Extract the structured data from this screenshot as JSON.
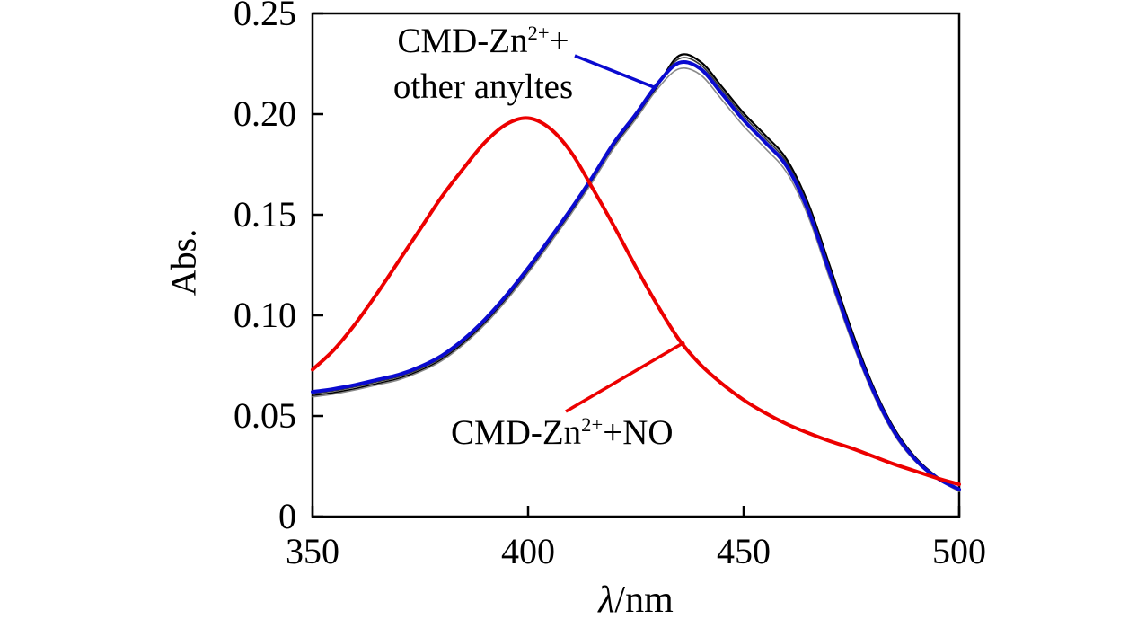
{
  "chart_data": {
    "type": "line",
    "title": "",
    "ylabel": "Abs.",
    "xlabel_italic": "λ",
    "xlabel_rest": "/nm",
    "xlim": [
      350,
      500
    ],
    "ylim": [
      0,
      0.25
    ],
    "grid": false,
    "legend_position": "none",
    "xticks": [
      {
        "value": 350,
        "label": "350"
      },
      {
        "value": 400,
        "label": "400"
      },
      {
        "value": 450,
        "label": "450"
      },
      {
        "value": 500,
        "label": "500"
      }
    ],
    "yticks": [
      {
        "value": 0,
        "label": "0"
      },
      {
        "value": 0.05,
        "label": "0.05"
      },
      {
        "value": 0.1,
        "label": "0.10"
      },
      {
        "value": 0.15,
        "label": "0.15"
      },
      {
        "value": 0.2,
        "label": "0.20"
      },
      {
        "value": 0.25,
        "label": "0.25"
      }
    ],
    "x": [
      350,
      355,
      360,
      365,
      370,
      375,
      380,
      385,
      390,
      395,
      400,
      405,
      410,
      415,
      420,
      425,
      430,
      435,
      440,
      445,
      450,
      455,
      460,
      465,
      470,
      475,
      480,
      485,
      490,
      495,
      500
    ],
    "series": [
      {
        "id": "other-analyte-black",
        "name": "CMD-Zn2+ + other analyte (black trace)",
        "color": "#000000",
        "width": 2.2,
        "values": [
          0.06,
          0.0615,
          0.0635,
          0.066,
          0.0685,
          0.0725,
          0.078,
          0.086,
          0.096,
          0.108,
          0.1215,
          0.136,
          0.151,
          0.167,
          0.184,
          0.1985,
          0.214,
          0.229,
          0.226,
          0.2135,
          0.2005,
          0.1895,
          0.1775,
          0.1555,
          0.1245,
          0.093,
          0.065,
          0.0435,
          0.029,
          0.0195,
          0.013
        ]
      },
      {
        "id": "other-analyte-gray",
        "name": "CMD-Zn2+ + other analyte (gray trace)",
        "color": "#8a8a8a",
        "width": 1.6,
        "values": [
          0.0595,
          0.061,
          0.063,
          0.0655,
          0.068,
          0.072,
          0.0775,
          0.0855,
          0.0955,
          0.1075,
          0.121,
          0.1355,
          0.1505,
          0.1665,
          0.1835,
          0.1975,
          0.2125,
          0.2225,
          0.2195,
          0.207,
          0.194,
          0.183,
          0.171,
          0.149,
          0.118,
          0.0875,
          0.061,
          0.0405,
          0.027,
          0.0185,
          0.0125
        ]
      },
      {
        "id": "other-analyte-dark",
        "name": "CMD-Zn2+ + other analyte (dark trace)",
        "color": "#3a3a3a",
        "width": 1.6,
        "values": [
          0.061,
          0.0625,
          0.0645,
          0.067,
          0.0695,
          0.0735,
          0.079,
          0.087,
          0.097,
          0.109,
          0.1225,
          0.137,
          0.152,
          0.168,
          0.185,
          0.199,
          0.2145,
          0.2275,
          0.2245,
          0.212,
          0.199,
          0.188,
          0.176,
          0.154,
          0.123,
          0.0915,
          0.064,
          0.0425,
          0.0285,
          0.0192,
          0.0132
        ]
      },
      {
        "id": "other-analytes-blue",
        "name": "CMD-Zn2+ + other anyltes (blue trace)",
        "color": "#0a0ad0",
        "width": 4,
        "values": [
          0.062,
          0.0635,
          0.0655,
          0.068,
          0.0705,
          0.0745,
          0.08,
          0.088,
          0.098,
          0.11,
          0.1235,
          0.138,
          0.153,
          0.169,
          0.186,
          0.2,
          0.215,
          0.2255,
          0.2225,
          0.21,
          0.197,
          0.186,
          0.174,
          0.152,
          0.121,
          0.09,
          0.063,
          0.042,
          0.028,
          0.019,
          0.0135
        ]
      },
      {
        "id": "no",
        "name": "CMD-Zn2+ + NO (red trace)",
        "color": "#ec0000",
        "width": 4,
        "values": [
          0.073,
          0.083,
          0.096,
          0.111,
          0.127,
          0.143,
          0.159,
          0.173,
          0.186,
          0.195,
          0.198,
          0.193,
          0.181,
          0.163,
          0.144,
          0.124,
          0.105,
          0.088,
          0.0755,
          0.066,
          0.058,
          0.0515,
          0.046,
          0.0415,
          0.0375,
          0.034,
          0.03,
          0.026,
          0.0225,
          0.019,
          0.016
        ]
      }
    ],
    "annotations": [
      {
        "id": "other-analytes",
        "text_pre": "CMD-Zn",
        "text_sup": "2+",
        "text_post": "+",
        "text_line2": "other anyltes",
        "color": "#0a0ad0",
        "line": {
          "x1": 640,
          "y1": 62,
          "x2": 728,
          "y2": 97
        }
      },
      {
        "id": "no",
        "text_pre": "CMD-Zn",
        "text_sup": "2+",
        "text_post": "+NO",
        "color": "#ec0000",
        "line": {
          "x1": 630,
          "y1": 458,
          "x2": 762,
          "y2": 381
        }
      }
    ]
  }
}
